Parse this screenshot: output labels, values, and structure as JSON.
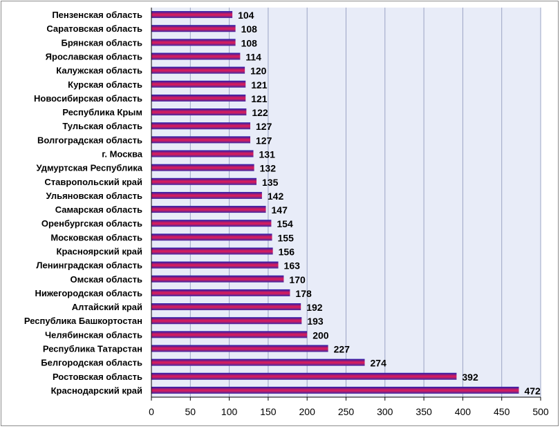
{
  "chart_data": {
    "type": "bar",
    "orientation": "horizontal",
    "categories": [
      "Пензенская область",
      "Саратовская область",
      "Брянская область",
      "Ярославская область",
      "Калужская область",
      "Курская область",
      "Новосибирская область",
      "Республика Крым",
      "Тульская область",
      "Волгоградская область",
      "г. Москва",
      "Удмуртская Республика",
      "Ставропольский край",
      "Ульяновская область",
      "Самарская область",
      "Оренбургская область",
      "Московская область",
      "Красноярский край",
      "Ленинградская область",
      "Омская область",
      "Нижегородская область",
      "Алтайский край",
      "Республика Башкортостан",
      "Челябинская область",
      "Республика Татарстан",
      "Белгородская область",
      "Ростовская область",
      "Краснодарский край"
    ],
    "values": [
      104,
      108,
      108,
      114,
      120,
      121,
      121,
      122,
      127,
      127,
      131,
      132,
      135,
      142,
      147,
      154,
      155,
      156,
      163,
      170,
      178,
      192,
      193,
      200,
      227,
      274,
      392,
      472
    ],
    "data_labels": [
      "104",
      "108",
      "108",
      "114",
      "120",
      "121",
      "121",
      "122",
      "127",
      "127",
      "131",
      "132",
      "135",
      "142",
      "147",
      "154",
      "155",
      "156",
      "163",
      "170",
      "178",
      "192",
      "193",
      "200",
      "227",
      "274",
      "392",
      "472"
    ],
    "xlim": [
      0,
      500
    ],
    "xticks": [
      "0",
      "50",
      "100",
      "150",
      "200",
      "250",
      "300",
      "350",
      "400",
      "450",
      "500"
    ],
    "title": "",
    "xlabel": "",
    "ylabel": "",
    "grid": "vertical",
    "legend": "none",
    "colors": {
      "bar_top": "#1f1fb0",
      "bar_mid": "#d31c5e",
      "bar_bottom": "#3a2aa8",
      "plot_background": "#e8ecf8",
      "gridline": "#9aa3c4",
      "frame": "#8a8a8a"
    }
  }
}
